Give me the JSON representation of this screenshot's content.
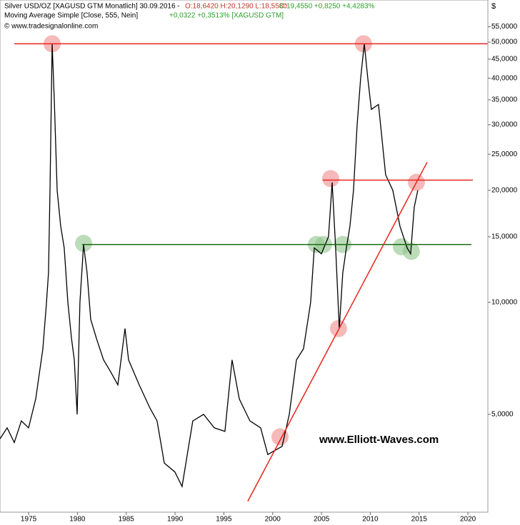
{
  "chart_data": {
    "type": "line",
    "title": "Silver USD/OZ [XAGUSD GTM  Monatlich] 30.09.2016 -",
    "ohlc_text": "O:18,6420 H:20,1290 L:18,5580",
    "close_text": "C:19,4550 +0,8250 +4,4283%",
    "indicator": "Moving Average Simple [Close, 555, Nein]",
    "indicator_value": "+0,0322 +0,3513% [XAGUSD GTM]",
    "source": "© www.tradesignalonline.com",
    "watermark": "www.Elliott-Waves.com",
    "y_unit": "$",
    "log_y": true,
    "x": [
      1972.07,
      1972.8,
      1973.53,
      1974.26,
      1975.0,
      1975.73,
      1976.46,
      1976.83,
      1977.04,
      1977.19,
      1977.41,
      1977.63,
      1977.92,
      1978.29,
      1978.65,
      1979.02,
      1979.39,
      1979.68,
      1979.97,
      1980.26,
      1980.63,
      1980.99,
      1981.36,
      1981.95,
      1982.68,
      1983.41,
      1984.14,
      1984.87,
      1985.24,
      1986.33,
      1987.43,
      1988.16,
      1988.9,
      1989.99,
      1990.72,
      1991.82,
      1992.92,
      1994.02,
      1995.11,
      1995.84,
      1996.58,
      1997.67,
      1998.77,
      1999.5,
      2000.23,
      2000.96,
      2001.7,
      2002.43,
      2003.16,
      2003.89,
      2004.26,
      2004.99,
      2005.72,
      2006.09,
      2006.45,
      2006.82,
      2007.18,
      2007.55,
      2007.91,
      2008.28,
      2008.65,
      2009.01,
      2009.38,
      2009.74,
      2010.11,
      2010.84,
      2011.57,
      2012.3,
      2013.04,
      2013.77,
      2014.13,
      2014.5,
      2014.86
    ],
    "series": [
      {
        "name": "Silver USD/OZ",
        "color": "#000000",
        "values": [
          4.3,
          4.6,
          4.2,
          4.8,
          4.6,
          5.5,
          7.5,
          10,
          12,
          20,
          49.5,
          35,
          20,
          16,
          14,
          10,
          8,
          7,
          5,
          10,
          14.3,
          12,
          9,
          8,
          7,
          6.5,
          6,
          8.5,
          7,
          6,
          5.2,
          4.8,
          3.7,
          3.5,
          3.2,
          4.8,
          5.0,
          4.6,
          4.5,
          7.0,
          5.5,
          4.8,
          4.6,
          3.9,
          4.0,
          4.1,
          5.0,
          7.0,
          7.5,
          10,
          14,
          13.5,
          15,
          21,
          14,
          8.5,
          12,
          14,
          16,
          20,
          30,
          40,
          49.5,
          40,
          33,
          34,
          22,
          20,
          16,
          14,
          13.5,
          18,
          20
        ]
      }
    ],
    "hlines": [
      {
        "y": 49.5,
        "x": [
          1973.53,
          2022.0
        ],
        "color": "#e8231c"
      },
      {
        "y": 21.3,
        "x": [
          2005.14,
          2020.5
        ],
        "color": "#e8231c"
      },
      {
        "y": 14.3,
        "x": [
          1980.48,
          2020.35
        ],
        "color": "#1d6b16"
      }
    ],
    "trendline": {
      "x": [
        1997.45,
        2015.82
      ],
      "y": [
        2.92,
        23.8
      ],
      "color": "#e8231c"
    },
    "highlights": [
      {
        "x": 1977.41,
        "y": 49.5,
        "color": "#f08a8a"
      },
      {
        "x": 2009.3,
        "y": 49.5,
        "color": "#f08a8a"
      },
      {
        "x": 2005.94,
        "y": 21.5,
        "color": "#f08a8a"
      },
      {
        "x": 2014.72,
        "y": 21.0,
        "color": "#f08a8a"
      },
      {
        "x": 2006.74,
        "y": 8.5,
        "color": "#f08a8a"
      },
      {
        "x": 2000.75,
        "y": 4.35,
        "color": "#f08a8a"
      },
      {
        "x": 1980.63,
        "y": 14.4,
        "color": "#8fc48a"
      },
      {
        "x": 2004.48,
        "y": 14.3,
        "color": "#8fc48a"
      },
      {
        "x": 2005.21,
        "y": 14.3,
        "color": "#8fc48a"
      },
      {
        "x": 2007.18,
        "y": 14.3,
        "color": "#8fc48a"
      },
      {
        "x": 2013.18,
        "y": 14.1,
        "color": "#8fc48a"
      },
      {
        "x": 2014.2,
        "y": 13.7,
        "color": "#8fc48a"
      }
    ],
    "xlim": [
      1972.07,
      2022.04
    ],
    "xticks": [
      1975,
      1980,
      1985,
      1990,
      1995,
      2000,
      2005,
      2010,
      2015,
      2020
    ],
    "ylim": [
      2.73,
      64.9
    ],
    "yticks": [
      {
        "value": 5,
        "label": "5,0000"
      },
      {
        "value": 10,
        "label": "10,0000"
      },
      {
        "value": 15,
        "label": "15,0000"
      },
      {
        "value": 20,
        "label": "20,0000"
      },
      {
        "value": 25,
        "label": "25,0000"
      },
      {
        "value": 30,
        "label": "30,0000"
      },
      {
        "value": 35,
        "label": "35,0000"
      },
      {
        "value": 40,
        "label": "40,0000"
      },
      {
        "value": 45,
        "label": "45,0000"
      },
      {
        "value": 50,
        "label": "50,0000"
      },
      {
        "value": 55,
        "label": "55,0000"
      }
    ]
  }
}
